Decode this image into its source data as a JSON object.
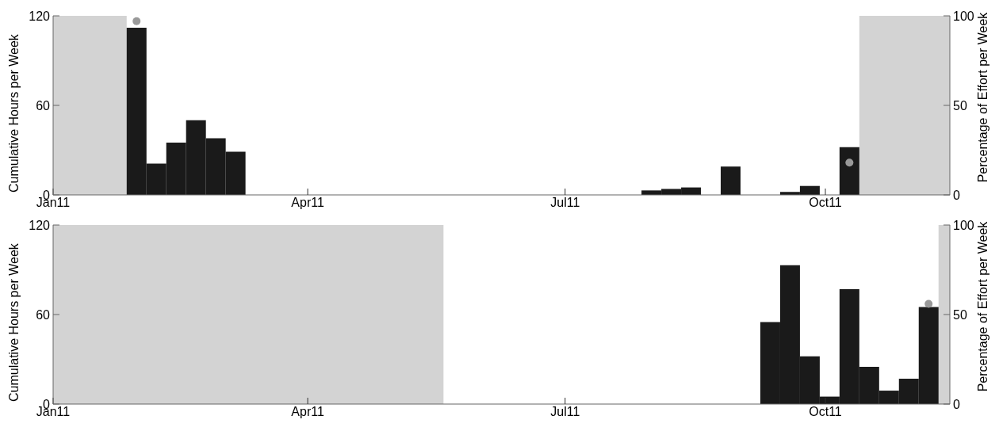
{
  "chart_data": [
    {
      "type": "bar",
      "ylabel": "Cumulative Hours per Week",
      "y2label": "Percentage of Effort per Week",
      "xlim": [
        "2011-01-01",
        "2011-11-14"
      ],
      "xticks": [
        {
          "value": "2011-01-01",
          "label": "Jan11"
        },
        {
          "value": "2011-04-01",
          "label": "Apr11"
        },
        {
          "value": "2011-07-01",
          "label": "Jul11"
        },
        {
          "value": "2011-10-01",
          "label": "Oct11"
        }
      ],
      "ylim": [
        0,
        120
      ],
      "yticks": [
        0,
        60,
        120
      ],
      "y2lim": [
        0,
        100
      ],
      "y2ticks": [
        0,
        50,
        100
      ],
      "marker": "circle",
      "x": [
        "2011-01-30T12:00",
        "2011-02-06T12:00",
        "2011-02-13T12:00",
        "2011-02-20T12:00",
        "2011-02-27T12:00",
        "2011-03-06T12:00",
        "2011-07-31T12:00",
        "2011-08-07T12:00",
        "2011-08-14T12:00",
        "2011-08-28T12:00",
        "2011-09-18T12:00",
        "2011-09-25T12:00",
        "2011-10-09T12:00"
      ],
      "series": [
        {
          "color": "#1a1a1a",
          "values": [
            112,
            21,
            35,
            50,
            38,
            29,
            3,
            4,
            5,
            19,
            2,
            6,
            32
          ]
        },
        {
          "type": "scatter",
          "axis": "y2",
          "color": "#999999",
          "values": [
            97,
            null,
            null,
            null,
            null,
            null,
            null,
            null,
            null,
            null,
            null,
            null,
            18
          ]
        }
      ],
      "bands": [
        {
          "axis": "x",
          "from": "2011-01-01",
          "to": "2011-01-27",
          "color": "#d3d3d3"
        },
        {
          "axis": "x",
          "from": "2011-10-13",
          "to": "2011-11-14",
          "color": "#d3d3d3"
        }
      ]
    },
    {
      "type": "bar",
      "ylabel": "Cumulative Hours per Week",
      "y2label": "Percentage of Effort per Week",
      "xlim": [
        "2011-01-01",
        "2011-11-14"
      ],
      "xticks": [
        {
          "value": "2011-01-01",
          "label": "Jan11"
        },
        {
          "value": "2011-04-01",
          "label": "Apr11"
        },
        {
          "value": "2011-07-01",
          "label": "Jul11"
        },
        {
          "value": "2011-10-01",
          "label": "Oct11"
        }
      ],
      "ylim": [
        0,
        120
      ],
      "yticks": [
        0,
        60,
        120
      ],
      "y2lim": [
        0,
        100
      ],
      "y2ticks": [
        0,
        50,
        100
      ],
      "marker": "circle",
      "x": [
        "2011-09-11T12:00",
        "2011-09-18T12:00",
        "2011-09-25T12:00",
        "2011-10-02T12:00",
        "2011-10-09T12:00",
        "2011-10-16T12:00",
        "2011-10-23T12:00",
        "2011-10-30T12:00",
        "2011-11-06T12:00"
      ],
      "series": [
        {
          "color": "#1a1a1a",
          "values": [
            55,
            93,
            32,
            5,
            77,
            25,
            9,
            17,
            65
          ]
        },
        {
          "type": "scatter",
          "axis": "y2",
          "color": "#999999",
          "values": [
            null,
            null,
            null,
            null,
            null,
            null,
            null,
            null,
            56
          ]
        }
      ],
      "bands": [
        {
          "axis": "x",
          "from": "2011-01-01",
          "to": "2011-05-19",
          "color": "#d3d3d3"
        },
        {
          "axis": "x",
          "from": "2011-11-10",
          "to": "2011-11-14",
          "color": "#d3d3d3"
        }
      ]
    }
  ]
}
